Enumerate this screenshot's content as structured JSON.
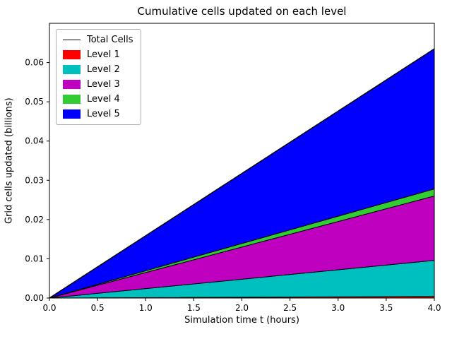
{
  "chart_data": {
    "type": "area",
    "stacked": true,
    "title": "Cumulative cells updated on each level",
    "xlabel": "Simulation time t (hours)",
    "ylabel": "Grid cells updated (billions)",
    "x": [
      0,
      4
    ],
    "series": [
      {
        "name": "Level 1",
        "color": "#ff0000",
        "values": [
          0,
          0.0004
        ]
      },
      {
        "name": "Level 2",
        "color": "#00bfbf",
        "values": [
          0,
          0.0092
        ]
      },
      {
        "name": "Level 3",
        "color": "#bf00bf",
        "values": [
          0,
          0.0164
        ]
      },
      {
        "name": "Level 4",
        "color": "#32cd32",
        "values": [
          0,
          0.0018
        ]
      },
      {
        "name": "Level 5",
        "color": "#0000ff",
        "values": [
          0,
          0.0357
        ]
      }
    ],
    "total_line": {
      "name": "Total Cells",
      "color": "#000000",
      "values": [
        0,
        0.0635
      ]
    },
    "xlim": [
      0,
      4
    ],
    "ylim": [
      0,
      0.07
    ],
    "xtick_labels": [
      "0.0",
      "0.5",
      "1.0",
      "1.5",
      "2.0",
      "2.5",
      "3.0",
      "3.5",
      "4.0"
    ],
    "ytick_labels": [
      "0.00",
      "0.01",
      "0.02",
      "0.03",
      "0.04",
      "0.05",
      "0.06"
    ],
    "legend_position": "upper left",
    "grid": false,
    "edge_color": "#000000"
  }
}
